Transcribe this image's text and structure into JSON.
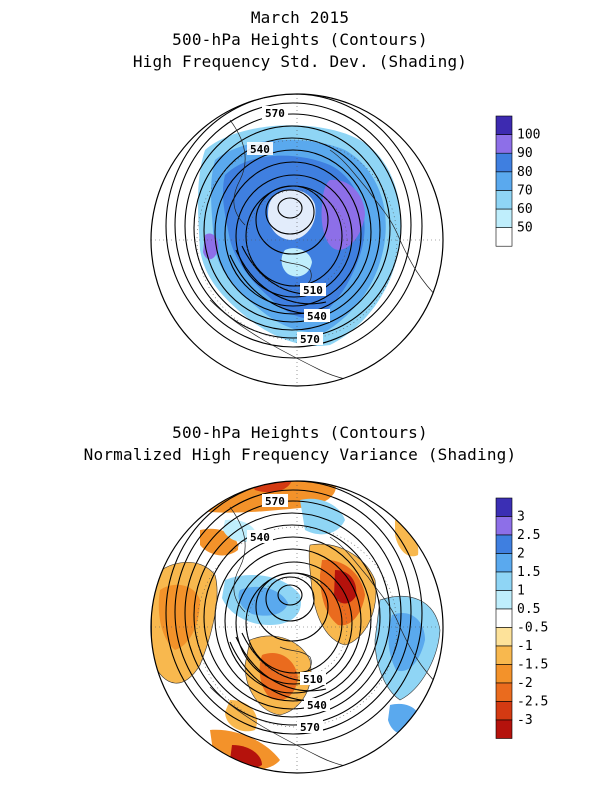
{
  "top": {
    "title_lines": [
      "March 2015",
      "500-hPa Heights (Contours)",
      "High Frequency Std. Dev. (Shading)"
    ],
    "contour_labels": [
      "570",
      "540",
      "510",
      "540",
      "570"
    ],
    "colorbar": {
      "colors": [
        "#ffffff",
        "#bfeefc",
        "#8fd5f5",
        "#5aa9ee",
        "#3f7fe0",
        "#8d6fe8",
        "#3d2ab0"
      ],
      "labels": [
        "50",
        "60",
        "70",
        "80",
        "90",
        "100"
      ]
    }
  },
  "bottom": {
    "title_lines": [
      "500-hPa Heights (Contours)",
      "Normalized High Frequency Variance (Shading)"
    ],
    "contour_labels": [
      "570",
      "540",
      "510",
      "540",
      "570"
    ],
    "colorbar": {
      "colors": [
        "#3b2fb4",
        "#8d6fe8",
        "#3f7fe0",
        "#5aa9ee",
        "#8fd5f5",
        "#bfeefc",
        "#ffffff",
        "#fde29a",
        "#f8b84e",
        "#f3922a",
        "#ea6b1e",
        "#d43a12",
        "#b5120c"
      ],
      "labels": [
        "3",
        "2.5",
        "2",
        "1.5",
        "1",
        "0.5",
        "-0.5",
        "-1",
        "-1.5",
        "-2",
        "-2.5",
        "-3"
      ]
    }
  }
}
